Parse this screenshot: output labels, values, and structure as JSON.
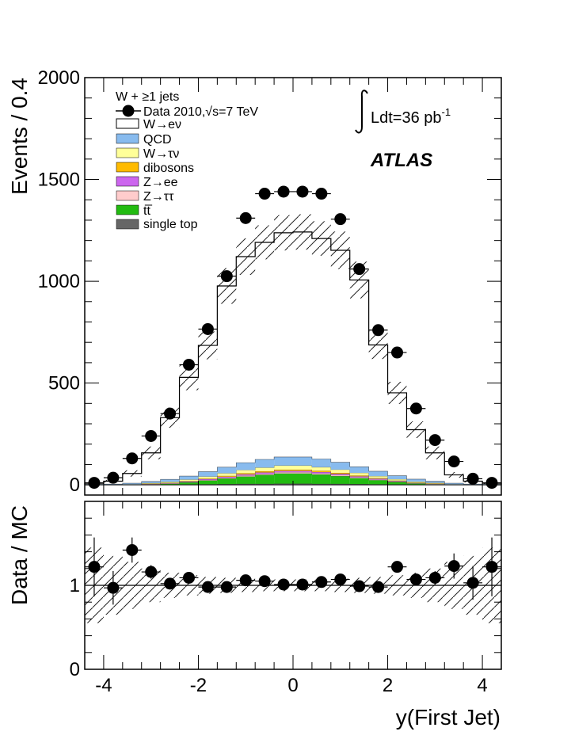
{
  "chart_data": [
    {
      "type": "bar",
      "panel": "main",
      "ylabel": "Events / 0.4",
      "xlabel": "",
      "xlim": [
        -4.4,
        4.4
      ],
      "ylim": [
        -50,
        2000
      ],
      "y_ticks": [
        0,
        500,
        1000,
        1500,
        2000
      ],
      "x_ticks": [
        -4,
        -2,
        0,
        2,
        4
      ],
      "legend_title": "W + ≥1 jets",
      "legend_position": "top-left",
      "luminosity_label": "Ldt=36 pb",
      "luminosity_superscript": "-1",
      "experiment_label": "ATLAS",
      "bin_edges": [
        -4.4,
        -4.0,
        -3.6,
        -3.2,
        -2.8,
        -2.4,
        -2.0,
        -1.6,
        -1.2,
        -0.8,
        -0.4,
        0.0,
        0.4,
        0.8,
        1.2,
        1.6,
        2.0,
        2.4,
        2.8,
        3.2,
        3.6,
        4.0,
        4.4
      ],
      "series": [
        {
          "name": "single top",
          "kind": "stack",
          "color": "#666666",
          "values": [
            0,
            0,
            0,
            1,
            1,
            2,
            3,
            4,
            5,
            5,
            6,
            6,
            5,
            5,
            4,
            3,
            2,
            1,
            1,
            0,
            0,
            0
          ]
        },
        {
          "name": "t̅t",
          "label_main": "t",
          "label_bar": "t̅",
          "kind": "stack",
          "color": "#22bb11",
          "values": [
            0,
            0,
            1,
            2,
            5,
            10,
            18,
            27,
            36,
            44,
            50,
            50,
            46,
            38,
            29,
            20,
            12,
            6,
            3,
            1,
            0,
            0
          ]
        },
        {
          "name": "Z→ττ",
          "kind": "stack",
          "color": "#ffcccc",
          "values": [
            0,
            0,
            0,
            1,
            1,
            2,
            3,
            4,
            5,
            5,
            6,
            6,
            5,
            5,
            4,
            3,
            2,
            1,
            1,
            0,
            0,
            0
          ]
        },
        {
          "name": "Z→ee",
          "kind": "stack",
          "color": "#cc66ee",
          "values": [
            0,
            0,
            0,
            1,
            2,
            3,
            4,
            5,
            6,
            7,
            7,
            7,
            7,
            6,
            5,
            4,
            3,
            2,
            1,
            0,
            0,
            0
          ]
        },
        {
          "name": "dibosons",
          "kind": "stack",
          "color": "#ffbb00",
          "values": [
            0,
            0,
            0,
            1,
            1,
            2,
            3,
            4,
            5,
            6,
            6,
            6,
            6,
            5,
            4,
            3,
            2,
            1,
            1,
            0,
            0,
            0
          ]
        },
        {
          "name": "W→τν",
          "kind": "stack",
          "color": "#ffff99",
          "values": [
            1,
            1,
            2,
            3,
            5,
            7,
            10,
            13,
            16,
            18,
            20,
            20,
            18,
            16,
            13,
            10,
            7,
            5,
            3,
            2,
            1,
            1
          ]
        },
        {
          "name": "QCD",
          "kind": "stack",
          "color": "#88bbee",
          "values": [
            2,
            3,
            5,
            8,
            12,
            17,
            24,
            30,
            36,
            40,
            42,
            42,
            40,
            36,
            30,
            24,
            17,
            12,
            8,
            5,
            3,
            2
          ]
        },
        {
          "name": "W→eν",
          "kind": "stack",
          "color": "#ffffff",
          "values": [
            5,
            14,
            48,
            140,
            303,
            485,
            620,
            890,
            1012,
            1066,
            1101,
            1105,
            1083,
            1041,
            917,
            620,
            407,
            243,
            139,
            41,
            14,
            5
          ]
        },
        {
          "name": "Data 2010,√s=7 TeV",
          "kind": "points",
          "color": "#000000",
          "values": [
            10,
            35,
            130,
            240,
            350,
            590,
            765,
            1025,
            1310,
            1430,
            1440,
            1440,
            1430,
            1305,
            1060,
            760,
            650,
            375,
            220,
            115,
            30,
            10
          ]
        }
      ]
    },
    {
      "type": "scatter",
      "panel": "ratio",
      "xlabel": "y(First Jet)",
      "ylabel": "Data / MC",
      "xlim": [
        -4.4,
        4.4
      ],
      "ylim": [
        0,
        2
      ],
      "y_ticks": [
        0,
        1
      ],
      "x_ticks": [
        -4,
        -2,
        0,
        2,
        4
      ],
      "reference_line": 1,
      "x": [
        -4.2,
        -3.8,
        -3.4,
        -3.0,
        -2.6,
        -2.2,
        -1.8,
        -1.4,
        -1.0,
        -0.6,
        -0.2,
        0.2,
        0.6,
        1.0,
        1.4,
        1.8,
        2.2,
        2.6,
        3.0,
        3.4,
        3.8,
        4.2
      ],
      "values": [
        1.22,
        0.97,
        1.42,
        1.16,
        1.02,
        1.09,
        0.98,
        0.98,
        1.06,
        1.05,
        1.01,
        1.01,
        1.04,
        1.07,
        0.99,
        0.98,
        1.22,
        1.07,
        1.09,
        1.23,
        1.03,
        1.22
      ],
      "errors": [
        0.35,
        0.2,
        0.15,
        0.08,
        0.05,
        0.04,
        0.03,
        0.03,
        0.03,
        0.03,
        0.03,
        0.03,
        0.03,
        0.03,
        0.03,
        0.03,
        0.04,
        0.05,
        0.08,
        0.15,
        0.2,
        0.35
      ],
      "band_halfwidth": [
        0.45,
        0.35,
        0.28,
        0.2,
        0.15,
        0.12,
        0.1,
        0.09,
        0.08,
        0.07,
        0.07,
        0.07,
        0.07,
        0.08,
        0.09,
        0.1,
        0.12,
        0.15,
        0.2,
        0.28,
        0.35,
        0.45
      ]
    }
  ]
}
